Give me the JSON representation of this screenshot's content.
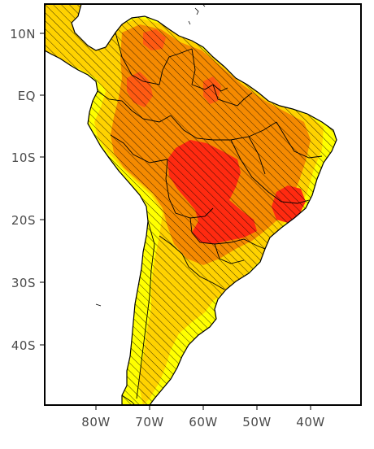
{
  "map": {
    "lat_ticks": [
      "10N",
      "EQ",
      "10S",
      "20S",
      "30S",
      "40S"
    ],
    "lon_ticks": [
      "80W",
      "70W",
      "60W",
      "50W",
      "40W"
    ]
  },
  "colors": {
    "low": "#ffff00",
    "medium": "#ffd200",
    "high": "#f58a00",
    "very_high": "#ff5a12",
    "extreme": "#ff2a10",
    "hatch": "#000000",
    "ocean": "#ffffff",
    "frame": "#000000"
  }
}
